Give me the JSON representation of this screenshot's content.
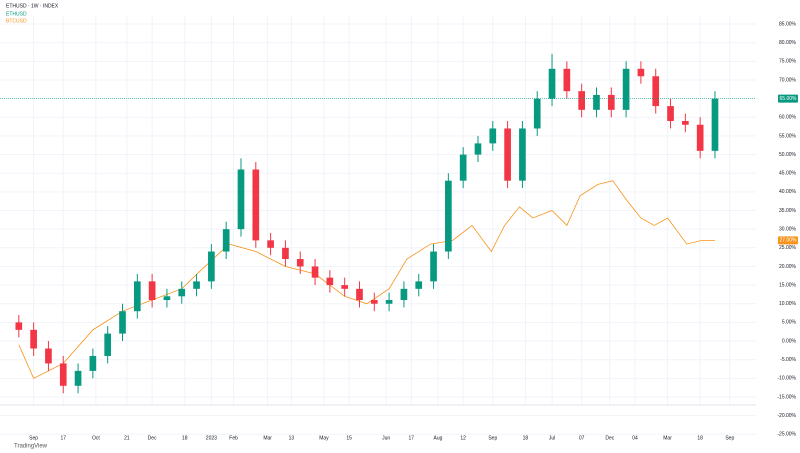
{
  "chart_data": {
    "type": "candlestick",
    "title": "ETHUSD · 1W · INDEX",
    "footer": "TradingView",
    "xlim": [
      -1,
      49.5
    ],
    "ylim": [
      -27.5,
      88.5
    ],
    "xticks": [
      {
        "value": 1,
        "label": "Sep"
      },
      {
        "value": 3,
        "label": "17"
      },
      {
        "value": 5.2,
        "label": "Oct"
      },
      {
        "value": 7.3,
        "label": "21"
      },
      {
        "value": 9,
        "label": "Dec"
      },
      {
        "value": 11.2,
        "label": "18"
      },
      {
        "value": 13,
        "label": "2023"
      },
      {
        "value": 14.5,
        "label": "Feb"
      },
      {
        "value": 16.8,
        "label": "Mar"
      },
      {
        "value": 18.4,
        "label": "13"
      },
      {
        "value": 20.6,
        "label": "May"
      },
      {
        "value": 22.3,
        "label": "15"
      },
      {
        "value": 24.8,
        "label": "Jun"
      },
      {
        "value": 26.5,
        "label": "17"
      },
      {
        "value": 28.3,
        "label": "Aug"
      },
      {
        "value": 30,
        "label": "12"
      },
      {
        "value": 32,
        "label": "Sep"
      },
      {
        "value": 34.2,
        "label": "18"
      },
      {
        "value": 36,
        "label": "Jul"
      },
      {
        "value": 38,
        "label": "07"
      },
      {
        "value": 39.9,
        "label": "Dec"
      },
      {
        "value": 41.6,
        "label": "04"
      },
      {
        "value": 43.8,
        "label": "Mar"
      },
      {
        "value": 46,
        "label": "18"
      },
      {
        "value": 48,
        "label": "Sep"
      }
    ],
    "yticks": [
      {
        "value": 85,
        "label": "85.00%"
      },
      {
        "value": 80,
        "label": "80.00%"
      },
      {
        "value": 75,
        "label": "75.00%"
      },
      {
        "value": 70,
        "label": "70.00%"
      },
      {
        "value": 60,
        "label": "60.00%"
      },
      {
        "value": 55,
        "label": "55.00%"
      },
      {
        "value": 50,
        "label": "50.00%"
      },
      {
        "value": 45,
        "label": "45.00%"
      },
      {
        "value": 40,
        "label": "40.00%"
      },
      {
        "value": 35,
        "label": "35.00%"
      },
      {
        "value": 30,
        "label": "30.00%"
      },
      {
        "value": 25,
        "label": "25.00%"
      },
      {
        "value": 20,
        "label": "20.00%"
      },
      {
        "value": 15,
        "label": "15.00%"
      },
      {
        "value": 10,
        "label": "10.00%"
      },
      {
        "value": 5,
        "label": "5.00%"
      },
      {
        "value": 0,
        "label": "0.00%"
      },
      {
        "value": -5,
        "label": "-5.00%"
      },
      {
        "value": -10,
        "label": "-10.00%"
      },
      {
        "value": -15,
        "label": "-15.00%"
      },
      {
        "value": -20,
        "label": "-20.00%"
      },
      {
        "value": -25,
        "label": "-25.00%"
      }
    ],
    "series": [
      {
        "name": "ETHUSD",
        "type": "candlestick",
        "up_color": "#089981",
        "down_color": "#f23645",
        "last_label": "65.00%",
        "x": [
          0,
          1,
          2,
          3,
          4,
          5,
          6,
          7,
          8,
          9,
          10,
          11,
          12,
          13,
          14,
          15,
          16,
          17,
          18,
          19,
          20,
          21,
          22,
          23,
          24,
          25,
          26,
          27,
          28,
          29,
          30,
          31,
          32,
          33,
          34,
          35,
          36,
          37,
          38,
          39,
          40,
          41,
          42,
          43,
          44,
          45,
          46,
          47
        ],
        "open": [
          5,
          3,
          -2,
          -6,
          -12,
          -8,
          -4,
          2,
          8,
          16,
          11,
          12,
          14,
          16,
          24,
          30,
          46,
          27,
          25,
          22,
          20,
          17,
          15,
          14,
          11,
          10,
          11,
          14,
          16,
          24,
          43,
          50,
          53,
          57,
          43,
          57,
          65,
          73,
          67,
          62,
          66,
          62,
          73,
          71,
          63,
          59,
          58,
          51
        ],
        "high": [
          7,
          5,
          0,
          -4,
          -6,
          -2,
          4,
          10,
          18,
          18,
          14,
          16,
          18,
          26,
          32,
          49,
          48,
          29,
          27,
          24,
          22,
          19,
          17,
          16,
          13,
          13,
          16,
          18,
          26,
          45,
          52,
          55,
          59,
          59,
          59,
          67,
          77,
          75,
          69,
          68,
          68,
          75,
          75,
          73,
          65,
          61,
          60,
          67
        ],
        "low": [
          1,
          -4,
          -8,
          -14,
          -14,
          -10,
          -6,
          0,
          6,
          9,
          9,
          10,
          12,
          14,
          22,
          28,
          25,
          23,
          20,
          18,
          15,
          13,
          12,
          9,
          8,
          8,
          9,
          12,
          14,
          22,
          41,
          48,
          51,
          41,
          41,
          55,
          63,
          65,
          60,
          60,
          60,
          60,
          69,
          61,
          57,
          56,
          49,
          49
        ],
        "close": [
          3,
          -2,
          -6,
          -12,
          -8,
          -4,
          2,
          8,
          16,
          11,
          12,
          14,
          16,
          24,
          30,
          46,
          27,
          25,
          22,
          20,
          17,
          15,
          14,
          11,
          10,
          11,
          14,
          16,
          24,
          43,
          50,
          53,
          57,
          43,
          57,
          65,
          73,
          67,
          62,
          66,
          62,
          73,
          71,
          63,
          59,
          58,
          51,
          65
        ]
      },
      {
        "name": "BTCUSD",
        "type": "line",
        "color": "#f7931a",
        "last_label": "27.00%",
        "x": [
          0,
          1,
          3,
          5,
          7,
          9,
          11,
          12.3,
          14.2,
          16,
          18,
          20,
          22,
          23.5,
          25,
          26.2,
          27.8,
          29.3,
          30.6,
          31.9,
          32.8,
          33.8,
          34.7,
          36,
          37,
          37.9,
          39.1,
          40.1,
          41,
          42,
          42.9,
          43.8,
          45.1,
          46.1,
          47
        ],
        "values": [
          -1,
          -10,
          -6,
          3,
          8,
          11,
          14,
          19,
          26,
          24,
          20,
          18,
          12,
          10,
          14,
          22,
          26,
          27,
          31,
          24,
          31,
          36,
          33,
          35,
          31,
          39,
          42,
          43,
          38,
          33,
          31,
          33,
          26,
          27,
          27
        ]
      }
    ]
  }
}
